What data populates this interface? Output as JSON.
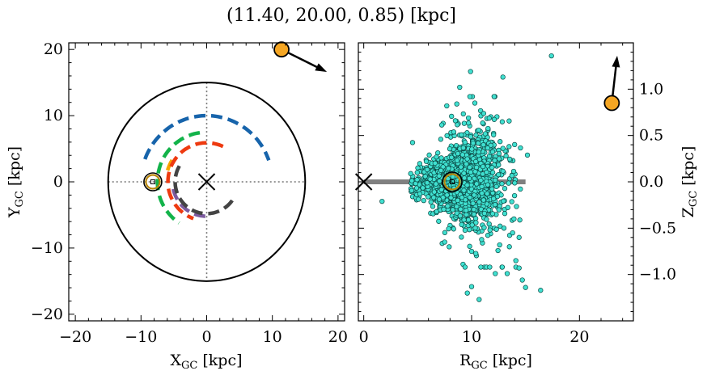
{
  "figure_title": "(11.40, 20.00, 0.85) [kpc]",
  "colors": {
    "axis": "#000000",
    "scatter_fill": "#40e0d0",
    "scatter_edge": "#0a4a45",
    "marker_orange": "#f5a623",
    "marker_ring": "#000000",
    "sun_ring": "#b8860b",
    "bar_gray": "#808080",
    "grid_dotted": "#777777",
    "arc_blue": "#1764ab",
    "arc_green": "#12b34a",
    "arc_orange": "#f7a400",
    "arc_red": "#ee3a10",
    "arc_purple": "#7b5a9e",
    "arc_dark": "#444444"
  },
  "chart_data": [
    {
      "type": "scatter",
      "panel": "left",
      "title": "",
      "xlabel": "X_GC [kpc]",
      "ylabel": "Y_GC [kpc]",
      "xlim": [
        -21,
        21
      ],
      "ylim": [
        -21,
        21
      ],
      "xticks": [
        -20,
        -10,
        0,
        10,
        20
      ],
      "yticks": [
        -20,
        -10,
        0,
        10,
        20
      ],
      "xtick_labels": [
        "−20",
        "−10",
        "0",
        "10",
        "20"
      ],
      "ytick_labels": [
        "−20",
        "−10",
        "0",
        "10",
        "20"
      ],
      "circle_radius": 15,
      "galactic_center": [
        0,
        0
      ],
      "sun_position": [
        -8.2,
        0
      ],
      "target_position": [
        11.4,
        20.0
      ],
      "target_arrow_end": [
        18.3,
        16.6
      ],
      "arms": [
        {
          "name": "blue",
          "radius": 10.0,
          "theta_start": 160,
          "theta_end": 19
        },
        {
          "name": "green",
          "radius": 7.5,
          "theta_start": 98,
          "theta_end": 236
        },
        {
          "name": "orange",
          "radius": 6.2,
          "theta_start": 148,
          "theta_end": 166
        },
        {
          "name": "red",
          "radius": 5.9,
          "theta_start": 65,
          "theta_end": 250
        },
        {
          "name": "purple",
          "radius": 5.2,
          "theta_start": 192,
          "theta_end": 273
        },
        {
          "name": "dark",
          "radius": 4.8,
          "theta_start": 150,
          "theta_end": 330
        }
      ]
    },
    {
      "type": "scatter",
      "panel": "right",
      "title": "",
      "xlabel": "R_GC [kpc]",
      "ylabel": "Z_GC [kpc]",
      "xlim": [
        -0.5,
        25
      ],
      "ylim": [
        -1.5,
        1.5
      ],
      "xticks": [
        0,
        10,
        20
      ],
      "yticks": [
        -1.0,
        -0.5,
        0.0,
        0.5,
        1.0
      ],
      "xtick_labels": [
        "0",
        "10",
        "20"
      ],
      "ytick_labels": [
        "−1.0",
        "−0.5",
        "0.0",
        "0.5",
        "1.0"
      ],
      "disk_bar": {
        "r_start": 0,
        "r_end": 15,
        "z": 0
      },
      "galactic_center": [
        0,
        0
      ],
      "sun_position": [
        8.2,
        0
      ],
      "target_position": [
        23.0,
        0.85
      ],
      "target_arrow_end": [
        23.5,
        1.36
      ],
      "n_points": 1700,
      "cloud_center_r": 9.0,
      "notable_points": [
        [
          17.4,
          1.36
        ],
        [
          9.9,
          1.19
        ],
        [
          12.9,
          1.13
        ],
        [
          8.9,
          1.02
        ],
        [
          7.7,
          0.82
        ],
        [
          1.7,
          -0.21
        ],
        [
          5.2,
          -0.13
        ],
        [
          7.5,
          -0.65
        ],
        [
          10.0,
          -1.13
        ],
        [
          9.6,
          -1.2
        ],
        [
          10.7,
          -1.27
        ],
        [
          15.0,
          -1.14
        ],
        [
          16.4,
          -1.17
        ],
        [
          14.7,
          -1.06
        ],
        [
          14.4,
          -0.93
        ],
        [
          12.2,
          -0.99
        ],
        [
          13.3,
          -0.99
        ],
        [
          13.0,
          -0.5
        ],
        [
          13.8,
          -0.55
        ],
        [
          13.5,
          -0.7
        ],
        [
          14.1,
          -0.85
        ],
        [
          14.4,
          -0.6
        ],
        [
          11.7,
          -0.52
        ],
        [
          12.6,
          -0.68
        ],
        [
          10.3,
          0.85
        ]
      ]
    }
  ]
}
